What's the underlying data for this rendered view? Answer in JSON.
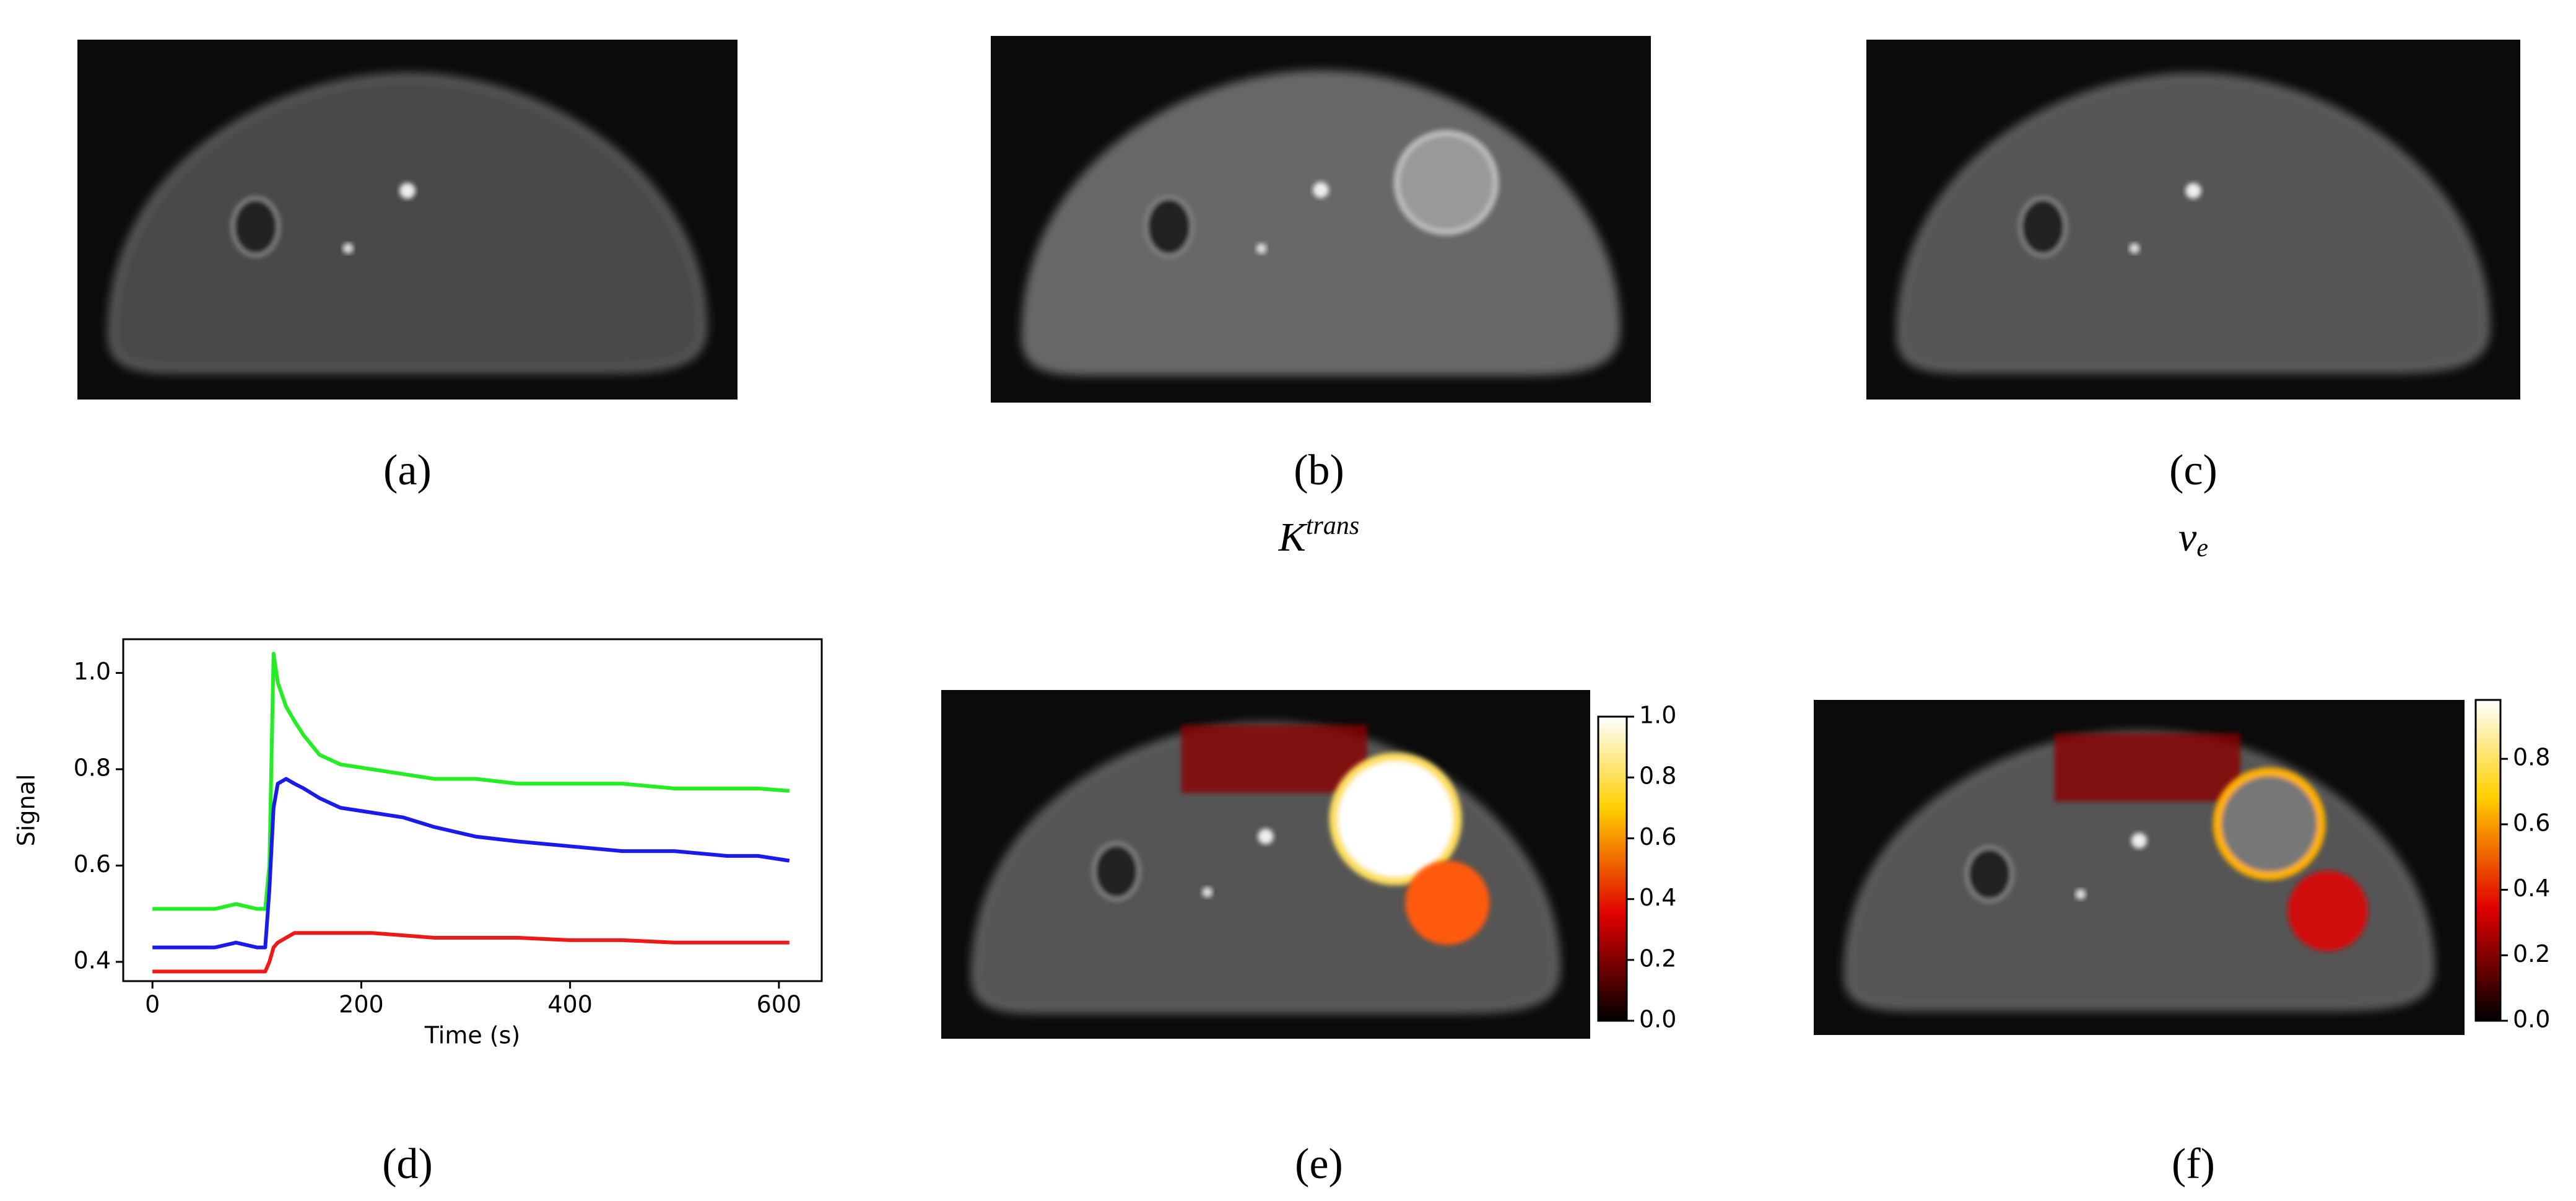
{
  "panels": [
    "(a)",
    "(b)",
    "(c)",
    "(d)",
    "(e)",
    "(f)"
  ],
  "captions": {
    "ktrans": {
      "base": "K",
      "sup": "trans"
    },
    "ve": {
      "base": "v",
      "sub": "e"
    }
  },
  "chart_data": {
    "type": "line",
    "x_label": "Time (s)",
    "y_label": "Signal",
    "x": [
      0,
      20,
      40,
      60,
      80,
      100,
      108,
      112,
      116,
      120,
      128,
      136,
      145,
      160,
      180,
      210,
      240,
      270,
      310,
      350,
      400,
      450,
      500,
      550,
      580,
      610
    ],
    "series": [
      {
        "color": "#22ee22",
        "values": [
          0.51,
          0.51,
          0.51,
          0.51,
          0.52,
          0.51,
          0.51,
          0.6,
          1.04,
          0.98,
          0.93,
          0.9,
          0.87,
          0.83,
          0.81,
          0.8,
          0.79,
          0.78,
          0.78,
          0.77,
          0.77,
          0.77,
          0.76,
          0.76,
          0.76,
          0.755
        ]
      },
      {
        "color": "#1a1aee",
        "values": [
          0.43,
          0.43,
          0.43,
          0.43,
          0.44,
          0.43,
          0.43,
          0.55,
          0.72,
          0.77,
          0.78,
          0.77,
          0.76,
          0.74,
          0.72,
          0.71,
          0.7,
          0.68,
          0.66,
          0.65,
          0.64,
          0.63,
          0.63,
          0.62,
          0.62,
          0.61
        ]
      },
      {
        "color": "#ee1a1a",
        "values": [
          0.38,
          0.38,
          0.38,
          0.38,
          0.38,
          0.38,
          0.38,
          0.4,
          0.43,
          0.44,
          0.45,
          0.46,
          0.46,
          0.46,
          0.46,
          0.46,
          0.455,
          0.45,
          0.45,
          0.45,
          0.445,
          0.445,
          0.44,
          0.44,
          0.44,
          0.44
        ]
      }
    ],
    "xlim": [
      -28,
      641
    ],
    "ylim": [
      0.36,
      1.07
    ],
    "xticks": [
      0,
      200,
      400,
      600
    ],
    "yticks": [
      0.4,
      0.6,
      0.8,
      {
        "value": 1,
        "label": "1.0"
      }
    ]
  },
  "colorbars": [
    {
      "ylim": [
        0,
        1
      ],
      "yticks": [
        {
          "value": 0,
          "label": "0.0"
        },
        0.2,
        0.4,
        0.6,
        0.8,
        {
          "value": 1,
          "label": "1.0"
        }
      ]
    },
    {
      "ylim": [
        0,
        0.98
      ],
      "yticks": [
        {
          "value": 0,
          "label": "0.0"
        },
        0.2,
        0.4,
        0.6,
        0.8
      ]
    }
  ]
}
